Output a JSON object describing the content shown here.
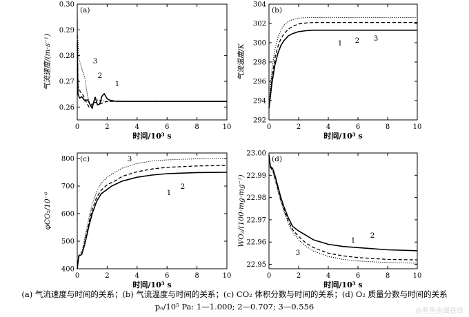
{
  "chart_data": [
    {
      "type": "line",
      "panel_label": "(a)",
      "xlabel": "时间/10³ s",
      "ylabel": "气流速度/(m·s⁻¹)",
      "xlim": [
        0,
        10
      ],
      "ylim": [
        0.255,
        0.3
      ],
      "xticks": [
        "0",
        "2",
        "4",
        "6",
        "8",
        "10"
      ],
      "yticks": [
        "0.26",
        "0.27",
        "0.28",
        "0.29",
        "0.30"
      ],
      "series": [
        {
          "name": "1",
          "style": "solid",
          "x": [
            0,
            0.05,
            0.15,
            0.3,
            0.5,
            0.7,
            0.9,
            1.0,
            1.1,
            1.2,
            1.35,
            1.5,
            1.65,
            1.8,
            2.0,
            2.2,
            2.5,
            3.0,
            4.0,
            6.0,
            8.0,
            10.0
          ],
          "y": [
            0.285,
            0.265,
            0.2635,
            0.264,
            0.2625,
            0.2628,
            0.2605,
            0.2595,
            0.262,
            0.2638,
            0.2608,
            0.2612,
            0.2642,
            0.2652,
            0.2632,
            0.2626,
            0.2623,
            0.2622,
            0.2622,
            0.2622,
            0.2622,
            0.2622
          ]
        },
        {
          "name": "2",
          "style": "dashed",
          "x": [
            0,
            0.05,
            0.2,
            0.4,
            0.6,
            0.8,
            1.0,
            1.2,
            1.5,
            2.0,
            3.0,
            10.0
          ],
          "y": [
            0.288,
            0.268,
            0.266,
            0.2645,
            0.262,
            0.2598,
            0.2612,
            0.2618,
            0.2612,
            0.2622,
            0.2622,
            0.2622
          ]
        },
        {
          "name": "3",
          "style": "dotted",
          "x": [
            0,
            0.03,
            0.1,
            0.3,
            0.5,
            0.7,
            0.9,
            1.1,
            1.3,
            1.6,
            2.0,
            3.0,
            10.0
          ],
          "y": [
            0.2965,
            0.287,
            0.279,
            0.275,
            0.2715,
            0.264,
            0.2605,
            0.2615,
            0.2628,
            0.2625,
            0.2622,
            0.2622,
            0.2622
          ]
        }
      ],
      "annotations": [
        "1",
        "2",
        "3"
      ]
    },
    {
      "type": "line",
      "panel_label": "(b)",
      "xlabel": "时间/10³ s",
      "ylabel": "气流温度/K",
      "xlim": [
        0,
        10
      ],
      "ylim": [
        292,
        304
      ],
      "xticks": [
        "0",
        "2",
        "4",
        "6",
        "8",
        "10"
      ],
      "yticks": [
        "292",
        "294",
        "296",
        "298",
        "300",
        "302",
        "304"
      ],
      "series": [
        {
          "name": "1",
          "style": "solid",
          "x": [
            0,
            0.2,
            0.4,
            0.6,
            0.8,
            1.0,
            1.3,
            1.6,
            2.0,
            2.5,
            3.0,
            4.0,
            6.0,
            8.0,
            10.0
          ],
          "y": [
            293.2,
            295.8,
            297.7,
            298.9,
            299.7,
            300.2,
            300.7,
            300.95,
            301.15,
            301.25,
            301.3,
            301.3,
            301.3,
            301.3,
            301.3
          ]
        },
        {
          "name": "2",
          "style": "dashed",
          "x": [
            0,
            0.2,
            0.4,
            0.6,
            0.8,
            1.0,
            1.3,
            1.6,
            2.0,
            2.5,
            3.0,
            4.0,
            6.0,
            8.0,
            10.0
          ],
          "y": [
            293.3,
            296.4,
            298.4,
            299.6,
            300.4,
            300.9,
            301.4,
            301.7,
            301.95,
            302.05,
            302.1,
            302.1,
            302.1,
            302.1,
            302.1
          ]
        },
        {
          "name": "3",
          "style": "dotted",
          "x": [
            0,
            0.2,
            0.4,
            0.6,
            0.8,
            1.0,
            1.3,
            1.6,
            2.0,
            2.5,
            3.0,
            4.0,
            6.0,
            8.0,
            10.0
          ],
          "y": [
            293.5,
            297.3,
            299.3,
            300.5,
            301.3,
            301.8,
            302.2,
            302.4,
            302.55,
            302.6,
            302.6,
            302.6,
            302.6,
            302.6,
            302.6
          ]
        }
      ],
      "annotations": [
        "1",
        "2",
        "3"
      ]
    },
    {
      "type": "line",
      "panel_label": "(c)",
      "xlabel": "时间/10³ s",
      "ylabel": "φCO₂/10⁻⁶",
      "xlim": [
        0,
        10
      ],
      "ylim": [
        400,
        820
      ],
      "xticks": [
        "0",
        "2",
        "4",
        "6",
        "8",
        "10"
      ],
      "yticks": [
        "400",
        "500",
        "600",
        "700",
        "800"
      ],
      "series": [
        {
          "name": "1",
          "style": "solid",
          "x": [
            0,
            0.1,
            0.3,
            0.5,
            0.8,
            1.0,
            1.3,
            1.6,
            2.0,
            2.3,
            3.0,
            4.0,
            5.0,
            6.0,
            8.0,
            10.0
          ],
          "y": [
            400,
            445,
            452,
            488,
            560,
            600,
            645,
            672,
            688,
            700,
            718,
            732,
            740,
            745,
            749,
            750
          ]
        },
        {
          "name": "2",
          "style": "dashed",
          "x": [
            0,
            0.1,
            0.3,
            0.5,
            0.8,
            1.0,
            1.3,
            1.6,
            2.0,
            2.5,
            3.0,
            4.0,
            5.0,
            6.0,
            8.0,
            10.0
          ],
          "y": [
            400,
            448,
            455,
            495,
            572,
            615,
            660,
            685,
            705,
            718,
            735,
            752,
            762,
            768,
            773,
            775
          ]
        },
        {
          "name": "3",
          "style": "dotted",
          "x": [
            0,
            0.1,
            0.3,
            0.5,
            0.8,
            1.0,
            1.3,
            1.6,
            2.0,
            2.5,
            3.0,
            4.0,
            5.0,
            6.0,
            8.0,
            10.0
          ],
          "y": [
            400,
            452,
            460,
            510,
            590,
            635,
            680,
            710,
            732,
            750,
            765,
            782,
            791,
            795,
            799,
            800
          ]
        }
      ],
      "annotations": [
        "1",
        "2",
        "3"
      ]
    },
    {
      "type": "line",
      "panel_label": "(d)",
      "xlabel": "时间/10³ s",
      "ylabel": "WO₂/(100·mg·mg⁻¹)",
      "xlim": [
        0,
        10
      ],
      "ylim": [
        22.948,
        23.0
      ],
      "xticks": [
        "0",
        "2",
        "4",
        "6",
        "8",
        "10"
      ],
      "yticks": [
        "22.95",
        "22.96",
        "22.97",
        "22.98",
        "22.99",
        "23.00"
      ],
      "series": [
        {
          "name": "1",
          "style": "solid",
          "x": [
            0,
            0.1,
            0.25,
            0.4,
            0.6,
            0.8,
            1.0,
            1.3,
            1.6,
            2.0,
            2.5,
            3.0,
            4.0,
            5.0,
            6.0,
            8.0,
            10.0
          ],
          "y": [
            22.999,
            22.994,
            22.993,
            22.99,
            22.985,
            22.98,
            22.976,
            22.971,
            22.967,
            22.965,
            22.963,
            22.961,
            22.959,
            22.958,
            22.9575,
            22.9565,
            22.9561
          ]
        },
        {
          "name": "2",
          "style": "dashed",
          "x": [
            0,
            0.1,
            0.25,
            0.4,
            0.6,
            0.8,
            1.0,
            1.3,
            1.6,
            2.0,
            2.5,
            3.0,
            4.0,
            5.0,
            6.0,
            8.0,
            10.0
          ],
          "y": [
            22.999,
            22.9935,
            22.9925,
            22.989,
            22.984,
            22.979,
            22.975,
            22.9695,
            22.9655,
            22.9625,
            22.9595,
            22.9575,
            22.955,
            22.9538,
            22.953,
            22.9522,
            22.952
          ]
        },
        {
          "name": "3",
          "style": "dotted",
          "x": [
            0,
            0.1,
            0.25,
            0.4,
            0.6,
            0.8,
            1.0,
            1.3,
            1.6,
            2.0,
            2.5,
            3.0,
            4.0,
            5.0,
            6.0,
            8.0,
            10.0
          ],
          "y": [
            22.999,
            22.993,
            22.992,
            22.988,
            22.983,
            22.978,
            22.974,
            22.9685,
            22.9645,
            22.961,
            22.958,
            22.956,
            22.9535,
            22.9522,
            22.9515,
            22.9508,
            22.9505
          ]
        }
      ],
      "annotations": [
        "1",
        "2",
        "3"
      ]
    }
  ],
  "caption": {
    "line1": "(a) 气流速度与时间的关系；(b) 气流温度与时间的关系；(c) CO₂ 体积分数与时间的关系；(d) O₂ 质量分数与时间的关系",
    "line2": "pₐ/10⁵ Pa: 1—1.000; 2—0.707; 3—0.556"
  },
  "watermark": "@有色金属在线"
}
